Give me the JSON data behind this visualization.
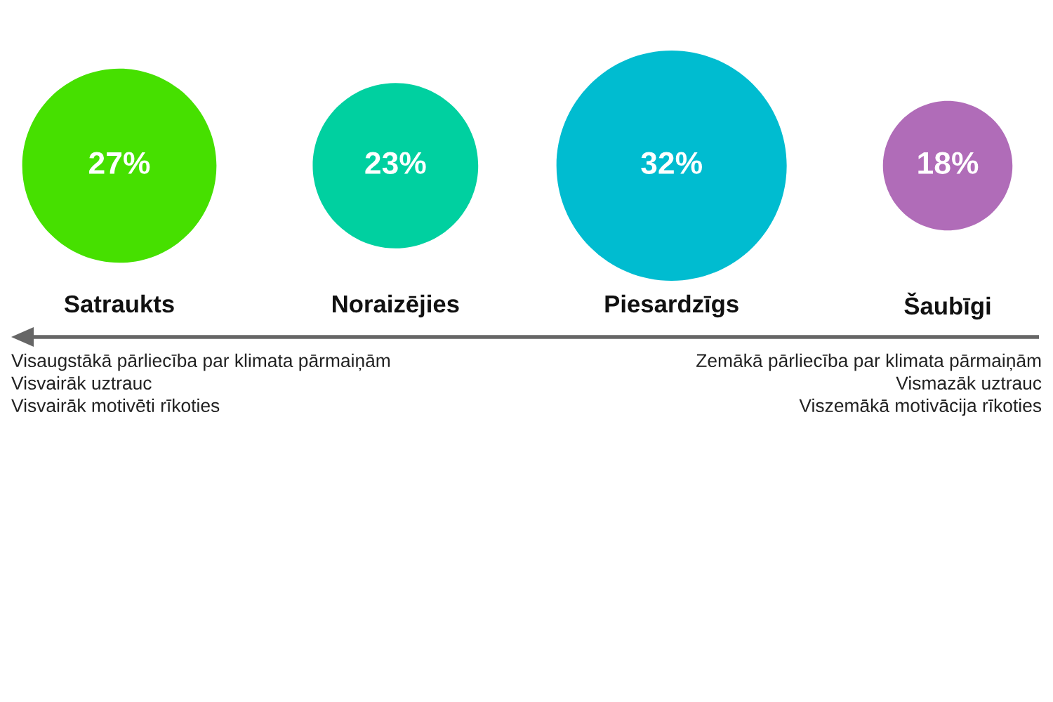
{
  "chart_data": {
    "type": "other",
    "categories": [
      "Satraukts",
      "Noraizējies",
      "Piesardzīgs",
      "Šaubīgi"
    ],
    "values": [
      27,
      23,
      32,
      18
    ],
    "colors": [
      "#46e000",
      "#00d0a0",
      "#00bcd0",
      "#b06cb8"
    ],
    "value_labels": [
      "27%",
      "23%",
      "32%",
      "18%"
    ],
    "annotations": [
      "Visaugstākā pārliecība par klimata pārmaiņām",
      "Visvairāk uztrauc",
      "Visvairāk motivēti rīkoties",
      "Zemākā pārliecība par klimata pārmaiņām",
      "Vismazāk uztrauc",
      "Viszemākā motivācija rīkoties"
    ]
  }
}
